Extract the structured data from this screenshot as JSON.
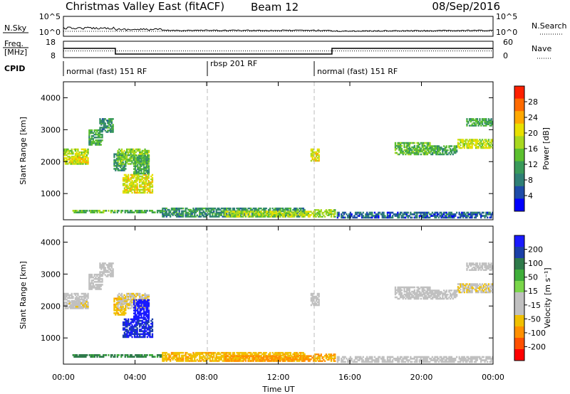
{
  "header": {
    "title": "Christmas Valley East (fitACF)",
    "beam": "Beam 12",
    "date": "08/Sep/2016"
  },
  "noise_panel": {
    "left_label": "N.Sky",
    "right_label": "N.Search",
    "left_ticks": [
      "10^5",
      "10^0"
    ],
    "right_ticks": [
      "10^5",
      "10^0"
    ]
  },
  "freq_panel": {
    "left_label_line1": "Freq.",
    "left_label_line2": "[MHz]",
    "left_ticks": [
      "18",
      "8"
    ],
    "right_ticks": [
      "60",
      "0"
    ],
    "right_label": "Nave",
    "freq_steps": [
      {
        "from": 0.0,
        "to": 2.9,
        "mhz": 14
      },
      {
        "from": 2.9,
        "to": 5.45,
        "mhz": 10
      },
      {
        "from": 5.55,
        "to": 15.0,
        "mhz": 10
      },
      {
        "from": 15.0,
        "to": 24.0,
        "mhz": 14
      }
    ],
    "nave_level": 25
  },
  "cpid": {
    "label": "CPID",
    "segments": [
      {
        "label": "normal (fast) 151 RF",
        "start": 0.0
      },
      {
        "label": "rbsp 201 RF",
        "start": 8.0
      },
      {
        "label": "normal (fast) 151 RF",
        "start": 14.0
      }
    ]
  },
  "power_panel": {
    "ylabel": "Slant Range [km]",
    "yticks": [
      "1000",
      "2000",
      "3000",
      "4000"
    ],
    "colorbar_label": "Power [dB]",
    "colorbar_ticks": [
      "4",
      "8",
      "12",
      "16",
      "20",
      "24",
      "28"
    ],
    "colorbar_colors": [
      "#0000ff",
      "#1e4ba8",
      "#2f7f76",
      "#3a9a5a",
      "#5cc02f",
      "#a8d81f",
      "#e8e000",
      "#ffa800",
      "#ff6a00",
      "#ff2000"
    ]
  },
  "velocity_panel": {
    "ylabel": "Slant Range [km]",
    "yticks": [
      "1000",
      "2000",
      "3000",
      "4000"
    ],
    "colorbar_label": "Velocity [m s⁻¹]",
    "colorbar_ticks": [
      "200",
      "100",
      "50",
      "15",
      "-15",
      "-50",
      "-100",
      "-200"
    ],
    "colorbar_colors": [
      "#1a1aff",
      "#1a3fa8",
      "#2e7a4a",
      "#3fae3a",
      "#7ad64a",
      "#c0c0c0",
      "#c0c0c0",
      "#f0c000",
      "#ff9000",
      "#ff5000",
      "#ff0000"
    ]
  },
  "xaxis": {
    "label": "Time UT",
    "ticks": [
      "00:00",
      "04:00",
      "08:00",
      "12:00",
      "16:00",
      "20:00",
      "00:00"
    ]
  },
  "chart_data": {
    "type": "heatmap",
    "x_unit": "hours UT",
    "xlim": [
      0,
      24
    ],
    "ylim_km": [
      180,
      4500
    ],
    "blobs": [
      {
        "t0": 0.0,
        "t1": 1.4,
        "r0": 1900,
        "r1": 2400,
        "power": 18,
        "velocity": 0
      },
      {
        "t0": 0.3,
        "t1": 1.4,
        "r0": 1950,
        "r1": 2150,
        "power": 22,
        "velocity": -10
      },
      {
        "t0": 1.4,
        "t1": 2.2,
        "r0": 2500,
        "r1": 3000,
        "power": 12,
        "velocity": 0
      },
      {
        "t0": 2.0,
        "t1": 2.8,
        "r0": 2900,
        "r1": 3350,
        "power": 10,
        "velocity": 0
      },
      {
        "t0": 2.8,
        "t1": 3.5,
        "r0": 1700,
        "r1": 2250,
        "power": 10,
        "velocity": -30
      },
      {
        "t0": 3.0,
        "t1": 4.8,
        "r0": 1900,
        "r1": 2400,
        "power": 16,
        "velocity": -10
      },
      {
        "t0": 3.3,
        "t1": 5.0,
        "r0": 1000,
        "r1": 1600,
        "power": 20,
        "velocity": 150
      },
      {
        "t0": 3.9,
        "t1": 4.8,
        "r0": 1600,
        "r1": 2200,
        "power": 12,
        "velocity": 200
      },
      {
        "t0": 0.5,
        "t1": 2.9,
        "r0": 380,
        "r1": 480,
        "power": 14,
        "velocity": 60
      },
      {
        "t0": 2.9,
        "t1": 5.5,
        "r0": 380,
        "r1": 480,
        "power": 12,
        "velocity": 60
      },
      {
        "t0": 5.5,
        "t1": 13.5,
        "r0": 250,
        "r1": 550,
        "power": 10,
        "velocity": -30
      },
      {
        "t0": 9.0,
        "t1": 14.0,
        "r0": 250,
        "r1": 450,
        "power": 18,
        "velocity": -50
      },
      {
        "t0": 13.8,
        "t1": 14.3,
        "r0": 2000,
        "r1": 2400,
        "power": 20,
        "velocity": 0
      },
      {
        "t0": 14.0,
        "t1": 15.2,
        "r0": 250,
        "r1": 500,
        "power": 16,
        "velocity": -40
      },
      {
        "t0": 15.2,
        "t1": 24.0,
        "r0": 220,
        "r1": 420,
        "power": 6,
        "velocity": 0
      },
      {
        "t0": 18.5,
        "t1": 20.5,
        "r0": 2200,
        "r1": 2600,
        "power": 14,
        "velocity": 0
      },
      {
        "t0": 20.5,
        "t1": 22.0,
        "r0": 2200,
        "r1": 2500,
        "power": 12,
        "velocity": 0
      },
      {
        "t0": 22.0,
        "t1": 24.0,
        "r0": 2400,
        "r1": 2700,
        "power": 18,
        "velocity": -10
      },
      {
        "t0": 22.5,
        "t1": 24.0,
        "r0": 3100,
        "r1": 3350,
        "power": 12,
        "velocity": 0
      }
    ]
  }
}
